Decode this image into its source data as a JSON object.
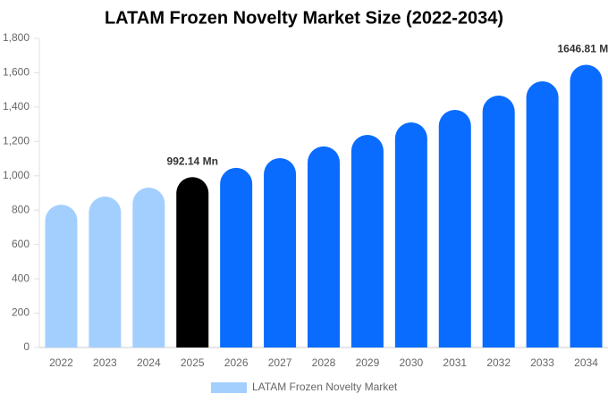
{
  "chart_data": {
    "type": "bar",
    "title": "LATAM Frozen Novelty Market Size (2022-2034)",
    "categories": [
      "2022",
      "2023",
      "2024",
      "2025",
      "2026",
      "2027",
      "2028",
      "2029",
      "2030",
      "2031",
      "2032",
      "2033",
      "2034"
    ],
    "series": [
      {
        "name": "LATAM Frozen Novelty Market",
        "color": "#a3cfff",
        "colors": [
          "#a3cfff",
          "#a3cfff",
          "#a3cfff",
          "#000000",
          "#0a6cff",
          "#0a6cff",
          "#0a6cff",
          "#0a6cff",
          "#0a6cff",
          "#0a6cff",
          "#0a6cff",
          "#0a6cff",
          "#0a6cff"
        ],
        "values": [
          832,
          879,
          931,
          992.14,
          1046,
          1103,
          1171,
          1238,
          1311,
          1384,
          1467,
          1550,
          1646.81
        ],
        "value_labels": [
          null,
          null,
          null,
          "992.14 Mn",
          null,
          null,
          null,
          null,
          null,
          null,
          null,
          null,
          "1646.81 Mn"
        ]
      }
    ],
    "ylim": [
      0,
      1800
    ],
    "yticks": [
      0,
      200,
      400,
      600,
      800,
      {
        "value": 1000,
        "label": "1,000"
      },
      {
        "value": 1200,
        "label": "1,200"
      },
      {
        "value": 1400,
        "label": "1,400"
      },
      {
        "value": 1600,
        "label": "1,600"
      },
      {
        "value": 1800,
        "label": "1,800"
      }
    ],
    "grid": false,
    "legend": "bottom"
  }
}
